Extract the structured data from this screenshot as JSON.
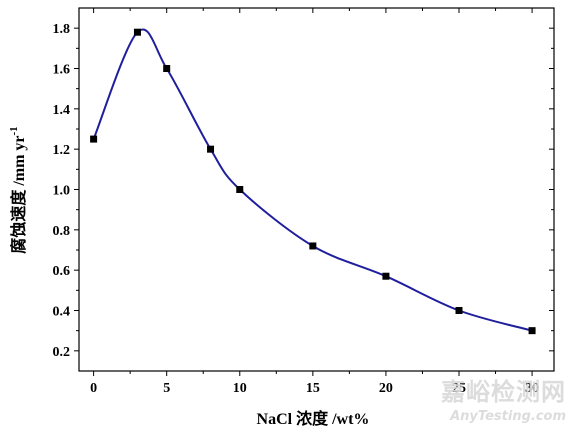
{
  "chart_data": {
    "type": "line",
    "x": [
      0,
      3,
      5,
      8,
      10,
      15,
      20,
      25,
      30
    ],
    "series": [
      {
        "values": [
          1.25,
          1.78,
          1.6,
          1.2,
          1.0,
          0.72,
          0.57,
          0.4,
          0.3
        ]
      }
    ],
    "xlabel": "NaCl 浓度 /wt%",
    "ylabel": "腐蚀速度 /mm yr",
    "ylabel_superscript": "-1",
    "xlim": [
      -1,
      31.5
    ],
    "ylim": [
      0.1,
      1.9
    ],
    "xticks": [
      "0",
      "5",
      "10",
      "15",
      "20",
      "25",
      "30"
    ],
    "yticks": [
      "0.2",
      "0.4",
      "0.6",
      "0.8",
      "1.0",
      "1.2",
      "1.4",
      "1.6",
      "1.8"
    ],
    "line_color": "#1f1f9e",
    "marker_color": "#000000",
    "marker": "square",
    "grid": false,
    "legend": "none"
  },
  "watermark": {
    "cn": "嘉峪检测网",
    "en": "AnyTesting.com"
  }
}
